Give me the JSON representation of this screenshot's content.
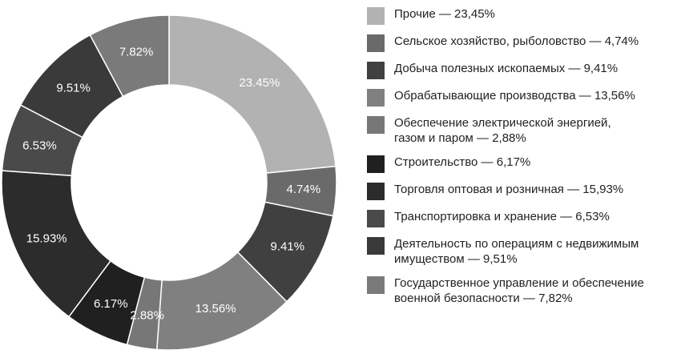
{
  "chart_data": {
    "type": "pie",
    "variant": "donut",
    "slices": [
      {
        "legend": "Прочие — 23,45%",
        "label": "23.45%",
        "value": 23.45,
        "color": "#b2b2b2",
        "text_color": "#ffffff"
      },
      {
        "legend": "Сельское хозяйство, рыболовство — 4,74%",
        "label": "4.74%",
        "value": 4.74,
        "color": "#6a6a6a",
        "text_color": "#ffffff"
      },
      {
        "legend": "Добыча полезных ископаемых — 9,41%",
        "label": "9.41%",
        "value": 9.41,
        "color": "#404040",
        "text_color": "#ffffff"
      },
      {
        "legend": "Обрабатывающие производства — 13,56%",
        "label": "13.56%",
        "value": 13.56,
        "color": "#808080",
        "text_color": "#ffffff"
      },
      {
        "legend": "Обеспечение электрической энергией,\nгазом и паром — 2,88%",
        "label": "2.88%",
        "value": 2.88,
        "color": "#777777",
        "text_color": "#ffffff"
      },
      {
        "legend": "Строительство — 6,17%",
        "label": "6.17%",
        "value": 6.17,
        "color": "#202020",
        "text_color": "#ffffff"
      },
      {
        "legend": "Торговля оптовая и розничная — 15,93%",
        "label": "15.93%",
        "value": 15.93,
        "color": "#2c2c2c",
        "text_color": "#ffffff"
      },
      {
        "legend": "Транспортировка и хранение — 6,53%",
        "label": "6.53%",
        "value": 6.53,
        "color": "#4a4a4a",
        "text_color": "#ffffff"
      },
      {
        "legend": "Деятельность по операциям с недвижимым\nимуществом — 9,51%",
        "label": "9.51%",
        "value": 9.51,
        "color": "#3a3a3a",
        "text_color": "#ffffff"
      },
      {
        "legend": "Государственное управление и обеспечение\nвоенной безопасности — 7,82%",
        "label": "7.82%",
        "value": 7.82,
        "color": "#7a7a7a",
        "text_color": "#ffffff"
      }
    ],
    "start_angle_deg": 0,
    "direction": "clockwise",
    "legend_position": "right"
  }
}
